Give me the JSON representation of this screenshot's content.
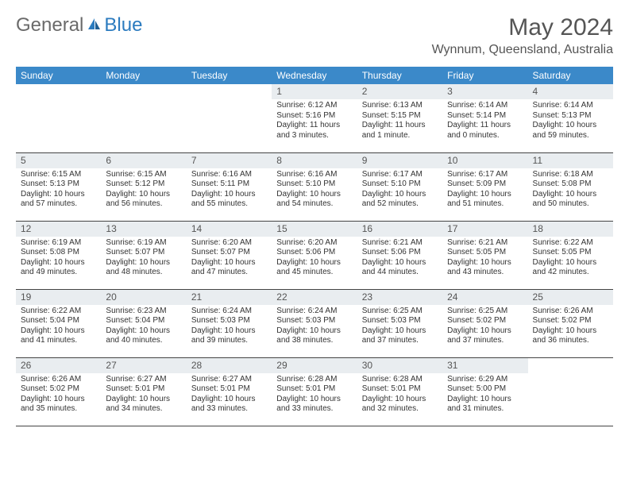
{
  "logo": {
    "general": "General",
    "blue": "Blue"
  },
  "title": "May 2024",
  "location": "Wynnum, Queensland, Australia",
  "day_headers": [
    "Sunday",
    "Monday",
    "Tuesday",
    "Wednesday",
    "Thursday",
    "Friday",
    "Saturday"
  ],
  "colors": {
    "header_bg": "#3b89c9",
    "header_text": "#ffffff",
    "daynum_bg": "#e9edf0",
    "logo_gray": "#6a6a6a",
    "logo_blue": "#2b7bbf",
    "border": "#444444"
  },
  "weeks": [
    [
      {
        "n": "",
        "sr": "",
        "ss": "",
        "dl": ""
      },
      {
        "n": "",
        "sr": "",
        "ss": "",
        "dl": ""
      },
      {
        "n": "",
        "sr": "",
        "ss": "",
        "dl": ""
      },
      {
        "n": "1",
        "sr": "Sunrise: 6:12 AM",
        "ss": "Sunset: 5:16 PM",
        "dl": "Daylight: 11 hours and 3 minutes."
      },
      {
        "n": "2",
        "sr": "Sunrise: 6:13 AM",
        "ss": "Sunset: 5:15 PM",
        "dl": "Daylight: 11 hours and 1 minute."
      },
      {
        "n": "3",
        "sr": "Sunrise: 6:14 AM",
        "ss": "Sunset: 5:14 PM",
        "dl": "Daylight: 11 hours and 0 minutes."
      },
      {
        "n": "4",
        "sr": "Sunrise: 6:14 AM",
        "ss": "Sunset: 5:13 PM",
        "dl": "Daylight: 10 hours and 59 minutes."
      }
    ],
    [
      {
        "n": "5",
        "sr": "Sunrise: 6:15 AM",
        "ss": "Sunset: 5:13 PM",
        "dl": "Daylight: 10 hours and 57 minutes."
      },
      {
        "n": "6",
        "sr": "Sunrise: 6:15 AM",
        "ss": "Sunset: 5:12 PM",
        "dl": "Daylight: 10 hours and 56 minutes."
      },
      {
        "n": "7",
        "sr": "Sunrise: 6:16 AM",
        "ss": "Sunset: 5:11 PM",
        "dl": "Daylight: 10 hours and 55 minutes."
      },
      {
        "n": "8",
        "sr": "Sunrise: 6:16 AM",
        "ss": "Sunset: 5:10 PM",
        "dl": "Daylight: 10 hours and 54 minutes."
      },
      {
        "n": "9",
        "sr": "Sunrise: 6:17 AM",
        "ss": "Sunset: 5:10 PM",
        "dl": "Daylight: 10 hours and 52 minutes."
      },
      {
        "n": "10",
        "sr": "Sunrise: 6:17 AM",
        "ss": "Sunset: 5:09 PM",
        "dl": "Daylight: 10 hours and 51 minutes."
      },
      {
        "n": "11",
        "sr": "Sunrise: 6:18 AM",
        "ss": "Sunset: 5:08 PM",
        "dl": "Daylight: 10 hours and 50 minutes."
      }
    ],
    [
      {
        "n": "12",
        "sr": "Sunrise: 6:19 AM",
        "ss": "Sunset: 5:08 PM",
        "dl": "Daylight: 10 hours and 49 minutes."
      },
      {
        "n": "13",
        "sr": "Sunrise: 6:19 AM",
        "ss": "Sunset: 5:07 PM",
        "dl": "Daylight: 10 hours and 48 minutes."
      },
      {
        "n": "14",
        "sr": "Sunrise: 6:20 AM",
        "ss": "Sunset: 5:07 PM",
        "dl": "Daylight: 10 hours and 47 minutes."
      },
      {
        "n": "15",
        "sr": "Sunrise: 6:20 AM",
        "ss": "Sunset: 5:06 PM",
        "dl": "Daylight: 10 hours and 45 minutes."
      },
      {
        "n": "16",
        "sr": "Sunrise: 6:21 AM",
        "ss": "Sunset: 5:06 PM",
        "dl": "Daylight: 10 hours and 44 minutes."
      },
      {
        "n": "17",
        "sr": "Sunrise: 6:21 AM",
        "ss": "Sunset: 5:05 PM",
        "dl": "Daylight: 10 hours and 43 minutes."
      },
      {
        "n": "18",
        "sr": "Sunrise: 6:22 AM",
        "ss": "Sunset: 5:05 PM",
        "dl": "Daylight: 10 hours and 42 minutes."
      }
    ],
    [
      {
        "n": "19",
        "sr": "Sunrise: 6:22 AM",
        "ss": "Sunset: 5:04 PM",
        "dl": "Daylight: 10 hours and 41 minutes."
      },
      {
        "n": "20",
        "sr": "Sunrise: 6:23 AM",
        "ss": "Sunset: 5:04 PM",
        "dl": "Daylight: 10 hours and 40 minutes."
      },
      {
        "n": "21",
        "sr": "Sunrise: 6:24 AM",
        "ss": "Sunset: 5:03 PM",
        "dl": "Daylight: 10 hours and 39 minutes."
      },
      {
        "n": "22",
        "sr": "Sunrise: 6:24 AM",
        "ss": "Sunset: 5:03 PM",
        "dl": "Daylight: 10 hours and 38 minutes."
      },
      {
        "n": "23",
        "sr": "Sunrise: 6:25 AM",
        "ss": "Sunset: 5:03 PM",
        "dl": "Daylight: 10 hours and 37 minutes."
      },
      {
        "n": "24",
        "sr": "Sunrise: 6:25 AM",
        "ss": "Sunset: 5:02 PM",
        "dl": "Daylight: 10 hours and 37 minutes."
      },
      {
        "n": "25",
        "sr": "Sunrise: 6:26 AM",
        "ss": "Sunset: 5:02 PM",
        "dl": "Daylight: 10 hours and 36 minutes."
      }
    ],
    [
      {
        "n": "26",
        "sr": "Sunrise: 6:26 AM",
        "ss": "Sunset: 5:02 PM",
        "dl": "Daylight: 10 hours and 35 minutes."
      },
      {
        "n": "27",
        "sr": "Sunrise: 6:27 AM",
        "ss": "Sunset: 5:01 PM",
        "dl": "Daylight: 10 hours and 34 minutes."
      },
      {
        "n": "28",
        "sr": "Sunrise: 6:27 AM",
        "ss": "Sunset: 5:01 PM",
        "dl": "Daylight: 10 hours and 33 minutes."
      },
      {
        "n": "29",
        "sr": "Sunrise: 6:28 AM",
        "ss": "Sunset: 5:01 PM",
        "dl": "Daylight: 10 hours and 33 minutes."
      },
      {
        "n": "30",
        "sr": "Sunrise: 6:28 AM",
        "ss": "Sunset: 5:01 PM",
        "dl": "Daylight: 10 hours and 32 minutes."
      },
      {
        "n": "31",
        "sr": "Sunrise: 6:29 AM",
        "ss": "Sunset: 5:00 PM",
        "dl": "Daylight: 10 hours and 31 minutes."
      },
      {
        "n": "",
        "sr": "",
        "ss": "",
        "dl": ""
      }
    ]
  ]
}
